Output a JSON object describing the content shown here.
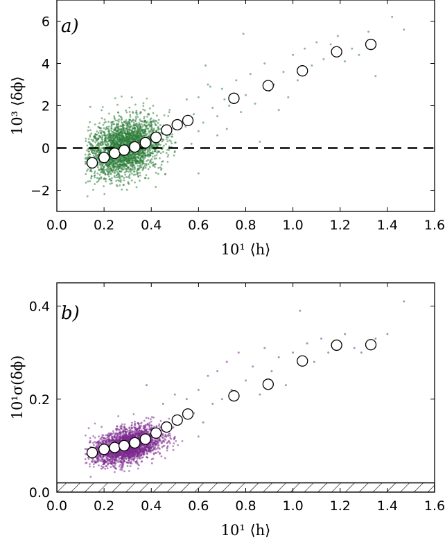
{
  "chart_data": [
    {
      "type": "scatter",
      "panel_label": "a)",
      "xlabel": "10¹ ⟨h⟩",
      "ylabel": "10³ ⟨δϕ⟩",
      "xlim": [
        0.0,
        1.6
      ],
      "ylim": [
        -3,
        7
      ],
      "xticks": [
        "0.0",
        "0.2",
        "0.4",
        "0.6",
        "0.8",
        "1.0",
        "1.2",
        "1.4",
        "1.6"
      ],
      "yticks": [
        "−2",
        "0",
        "2",
        "4",
        "6"
      ],
      "reference_line": {
        "y": 0,
        "style": "dashed"
      },
      "cloud": {
        "color": "#2e7d3a",
        "center": [
          0.29,
          0.0
        ],
        "spread": [
          0.075,
          0.65
        ]
      },
      "series": [
        {
          "marker": "open-circle",
          "x": [
            0.15,
            0.2,
            0.245,
            0.285,
            0.33,
            0.375,
            0.42,
            0.465,
            0.51,
            0.555,
            0.75,
            0.895,
            1.04,
            1.185,
            1.33
          ],
          "y": [
            -0.7,
            -0.45,
            -0.25,
            -0.1,
            0.05,
            0.25,
            0.5,
            0.85,
            1.1,
            1.3,
            2.35,
            2.95,
            3.65,
            4.55,
            4.9
          ]
        }
      ],
      "sparse_points": [
        [
          0.58,
          1.6
        ],
        [
          0.6,
          2.4
        ],
        [
          0.62,
          1.2
        ],
        [
          0.64,
          3.0
        ],
        [
          0.66,
          1.9
        ],
        [
          0.68,
          1.5
        ],
        [
          0.7,
          2.8
        ],
        [
          0.72,
          0.9
        ],
        [
          0.73,
          2.0
        ],
        [
          0.76,
          3.2
        ],
        [
          0.78,
          1.7
        ],
        [
          0.8,
          2.5
        ],
        [
          0.82,
          3.5
        ],
        [
          0.84,
          2.1
        ],
        [
          0.86,
          0.3
        ],
        [
          0.88,
          4.0
        ],
        [
          0.9,
          2.7
        ],
        [
          0.92,
          3.0
        ],
        [
          0.94,
          1.8
        ],
        [
          0.96,
          3.6
        ],
        [
          0.98,
          2.4
        ],
        [
          1.0,
          4.4
        ],
        [
          1.02,
          3.2
        ],
        [
          1.05,
          4.7
        ],
        [
          1.08,
          3.9
        ],
        [
          1.1,
          5.0
        ],
        [
          1.13,
          4.2
        ],
        [
          1.16,
          4.9
        ],
        [
          1.19,
          5.3
        ],
        [
          1.22,
          4.1
        ],
        [
          1.25,
          4.7
        ],
        [
          1.28,
          4.4
        ],
        [
          1.32,
          5.5
        ],
        [
          1.35,
          3.4
        ],
        [
          1.42,
          6.2
        ],
        [
          1.47,
          5.6
        ],
        [
          0.79,
          5.4
        ],
        [
          0.6,
          -1.2
        ],
        [
          0.63,
          3.9
        ],
        [
          0.55,
          2.3
        ],
        [
          0.57,
          0.2
        ],
        [
          0.6,
          0.8
        ],
        [
          0.65,
          2.9
        ],
        [
          0.68,
          0.6
        ],
        [
          0.71,
          2.3
        ]
      ]
    },
    {
      "type": "scatter",
      "panel_label": "b)",
      "xlabel": "10¹ ⟨h⟩",
      "ylabel": "10¹σ(δϕ)",
      "xlim": [
        0.0,
        1.6
      ],
      "ylim": [
        0.0,
        0.45
      ],
      "xticks": [
        "0.0",
        "0.2",
        "0.4",
        "0.6",
        "0.8",
        "1.0",
        "1.2",
        "1.4",
        "1.6"
      ],
      "yticks": [
        "0.0",
        "0.2",
        "0.4"
      ],
      "hatched_band": {
        "y_from": 0.0,
        "y_to": 0.02,
        "pattern": "diagonal-hatch"
      },
      "cloud": {
        "color": "#7b2a8e",
        "center": [
          0.3,
          0.1
        ],
        "spread": [
          0.07,
          0.018
        ]
      },
      "series": [
        {
          "marker": "open-circle",
          "x": [
            0.15,
            0.2,
            0.245,
            0.285,
            0.33,
            0.375,
            0.42,
            0.465,
            0.51,
            0.555,
            0.75,
            0.895,
            1.04,
            1.185,
            1.33
          ],
          "y": [
            0.085,
            0.092,
            0.096,
            0.1,
            0.106,
            0.114,
            0.127,
            0.14,
            0.155,
            0.168,
            0.207,
            0.232,
            0.282,
            0.316,
            0.317
          ]
        }
      ],
      "sparse_points": [
        [
          0.58,
          0.17
        ],
        [
          0.6,
          0.22
        ],
        [
          0.62,
          0.15
        ],
        [
          0.64,
          0.25
        ],
        [
          0.66,
          0.19
        ],
        [
          0.68,
          0.26
        ],
        [
          0.7,
          0.2
        ],
        [
          0.72,
          0.28
        ],
        [
          0.74,
          0.22
        ],
        [
          0.77,
          0.3
        ],
        [
          0.8,
          0.24
        ],
        [
          0.83,
          0.27
        ],
        [
          0.86,
          0.21
        ],
        [
          0.88,
          0.31
        ],
        [
          0.91,
          0.26
        ],
        [
          0.94,
          0.29
        ],
        [
          0.97,
          0.23
        ],
        [
          1.0,
          0.3
        ],
        [
          1.03,
          0.39
        ],
        [
          1.06,
          0.32
        ],
        [
          1.09,
          0.28
        ],
        [
          1.12,
          0.33
        ],
        [
          1.15,
          0.3
        ],
        [
          1.19,
          0.32
        ],
        [
          1.22,
          0.34
        ],
        [
          1.26,
          0.31
        ],
        [
          1.29,
          0.3
        ],
        [
          1.35,
          0.33
        ],
        [
          1.4,
          0.34
        ],
        [
          1.47,
          0.41
        ],
        [
          0.5,
          0.21
        ],
        [
          0.45,
          0.19
        ],
        [
          0.38,
          0.23
        ],
        [
          0.55,
          0.2
        ]
      ]
    }
  ]
}
